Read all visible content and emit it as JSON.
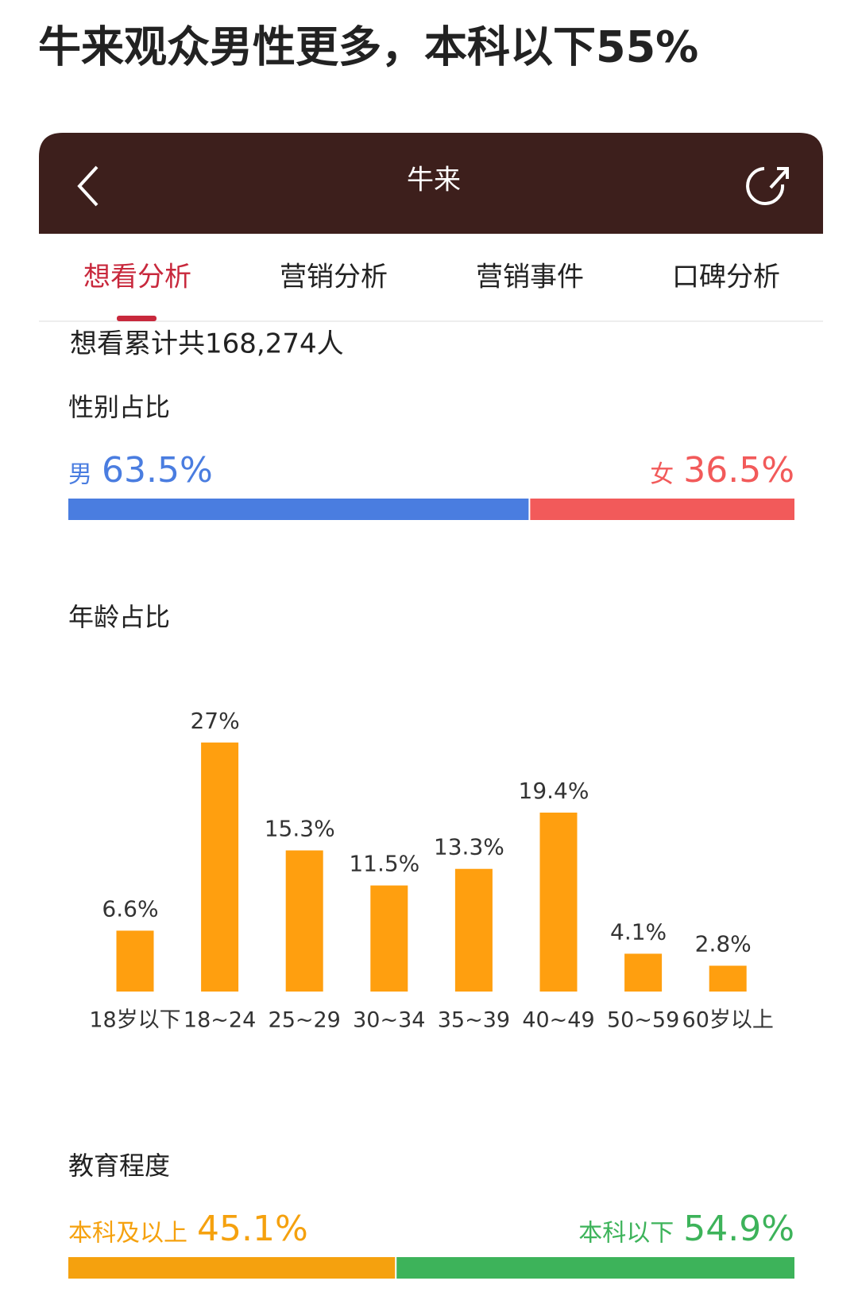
{
  "headline": "牛来观众男性更多，本科以下55%",
  "nav": {
    "title": "牛来"
  },
  "tabs": [
    "想看分析",
    "营销分析",
    "营销事件",
    "口碑分析"
  ],
  "total": "想看累计共168,274人",
  "chart_data": [
    {
      "type": "split-bar",
      "title": "性别占比",
      "series": [
        {
          "name": "男",
          "color": "#4a7de0",
          "values": [
            63.5
          ],
          "value_labels": [
            "63.5%"
          ]
        },
        {
          "name": "女",
          "color": "#f25a5a",
          "values": [
            36.5
          ],
          "value_labels": [
            "36.5%"
          ]
        }
      ]
    },
    {
      "type": "bar",
      "title": "年龄占比",
      "color": "#ff9f0f",
      "categories": [
        "18岁以下",
        "18~24",
        "25~29",
        "30~34",
        "35~39",
        "40~49",
        "50~59",
        "60岁以上"
      ],
      "values": [
        6.6,
        27,
        15.3,
        11.5,
        13.3,
        19.4,
        4.1,
        2.8
      ],
      "value_labels": [
        "6.6%",
        "27%",
        "15.3%",
        "11.5%",
        "13.3%",
        "19.4%",
        "4.1%",
        "2.8%"
      ]
    },
    {
      "type": "split-bar",
      "title": "教育程度",
      "series": [
        {
          "name": "本科及以上",
          "color": "#f5a10e",
          "values": [
            45.1
          ],
          "value_labels": [
            "45.1%"
          ]
        },
        {
          "name": "本科以下",
          "color": "#3db35a",
          "values": [
            54.9
          ],
          "value_labels": [
            "54.9%"
          ]
        }
      ]
    }
  ]
}
